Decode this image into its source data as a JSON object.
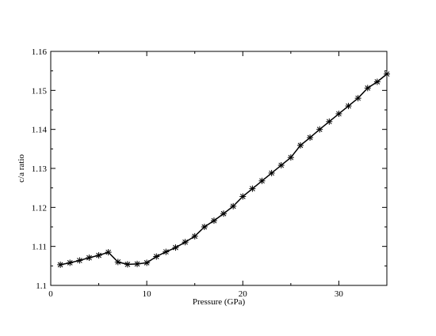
{
  "chart_data": {
    "type": "line",
    "title": "",
    "xlabel": "Pressure (GPa)",
    "ylabel": "c/a ratio",
    "xlim": [
      0,
      35
    ],
    "ylim": [
      1.1,
      1.16
    ],
    "grid": false,
    "legend": "none",
    "marker": "asterisk",
    "line_color": "#000000",
    "x_ticks": [
      0,
      10,
      20,
      30
    ],
    "x_tick_labels": [
      "0",
      "10",
      "20",
      "30"
    ],
    "y_ticks": [
      1.1,
      1.11,
      1.12,
      1.13,
      1.14,
      1.15,
      1.16
    ],
    "y_tick_labels": [
      "1.1",
      "1.11",
      "1.12",
      "1.13",
      "1.14",
      "1.15",
      "1.16"
    ],
    "series": [
      {
        "x": [
          1,
          2,
          3,
          4,
          5,
          6,
          7,
          8,
          9,
          10,
          11,
          12,
          13,
          14,
          15,
          16,
          17,
          18,
          19,
          20,
          21,
          22,
          23,
          24,
          25,
          26,
          27,
          28,
          29,
          30,
          31,
          32,
          33,
          34,
          35
        ],
        "values": [
          1.1053,
          1.1058,
          1.1064,
          1.1071,
          1.1077,
          1.1085,
          1.106,
          1.1054,
          1.1055,
          1.1058,
          1.1074,
          1.1086,
          1.1097,
          1.1111,
          1.1126,
          1.115,
          1.1166,
          1.1184,
          1.1203,
          1.1228,
          1.1248,
          1.1268,
          1.1288,
          1.1308,
          1.1328,
          1.1359,
          1.1379,
          1.14,
          1.142,
          1.144,
          1.146,
          1.148,
          1.1506,
          1.1522,
          1.1542
        ]
      }
    ]
  }
}
